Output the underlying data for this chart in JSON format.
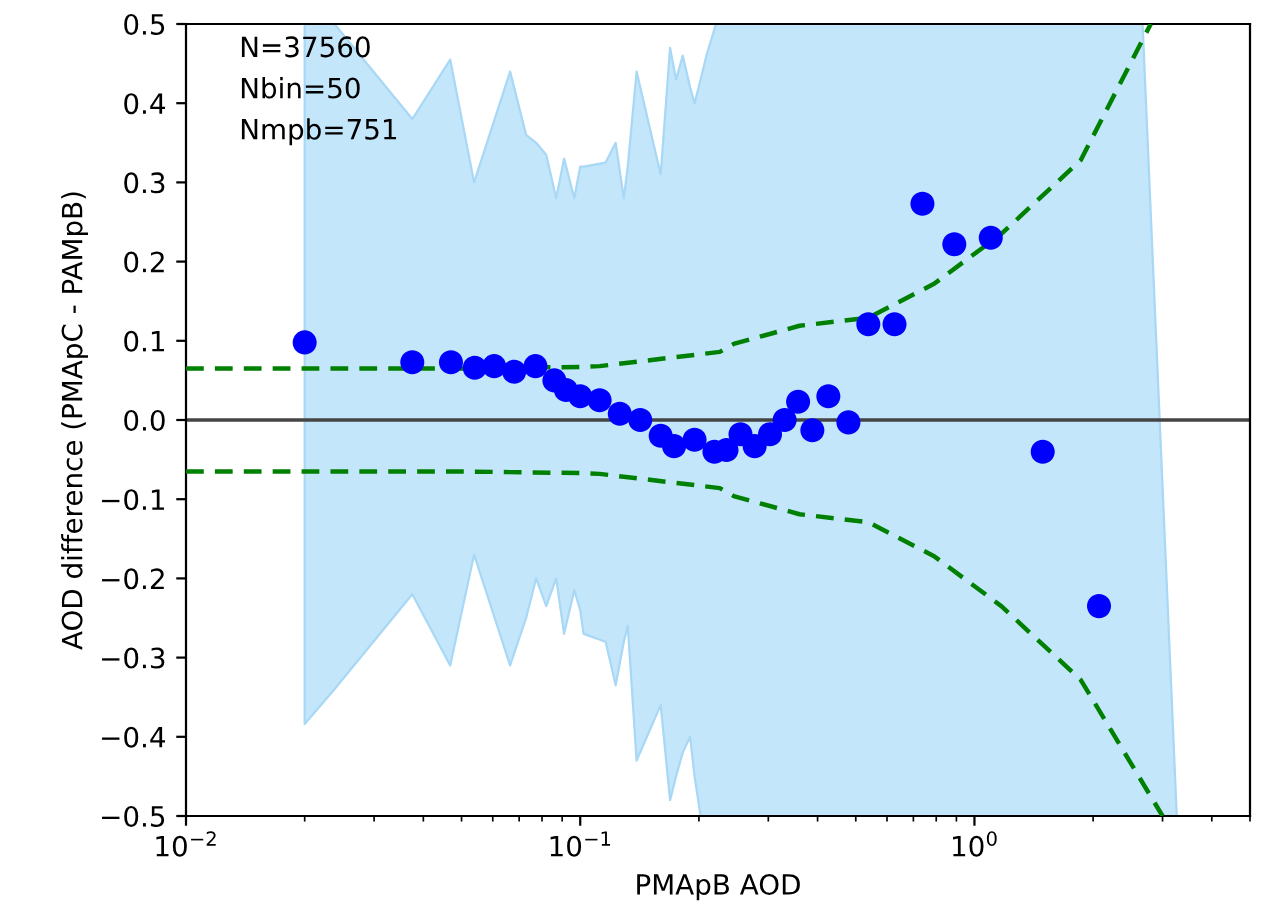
{
  "chart_data": {
    "type": "scatter",
    "xlabel": "PMApB AOD",
    "ylabel": "AOD difference (PMApC - PAMpB)",
    "annotations": [
      "N=37560",
      "Nbin=50",
      "Nmpb=751"
    ],
    "log": "x",
    "grid": false,
    "legend": false,
    "xlim": [
      0.01,
      5
    ],
    "xticks": [
      {
        "value": 0.01,
        "label": "10$^{−2}$"
      },
      {
        "value": 0.1,
        "label": "10$^{−1}$"
      },
      {
        "value": 1,
        "label": "10$^{0}$"
      }
    ],
    "ylim": [
      -0.5,
      0.5
    ],
    "yticks": [
      {
        "value": -0.5,
        "label": "−0.5"
      },
      {
        "value": -0.4,
        "label": "−0.4"
      },
      {
        "value": -0.3,
        "label": "−0.3"
      },
      {
        "value": -0.2,
        "label": "−0.2"
      },
      {
        "value": -0.1,
        "label": "−0.1"
      },
      {
        "value": 0,
        "label": "0.0"
      },
      0.1,
      0.2,
      0.3,
      0.4,
      0.5
    ],
    "ref_lines": [
      {
        "axis": "y",
        "value": 0,
        "color": "#444444",
        "line_style": "solid"
      }
    ],
    "series": [
      {
        "type": "line",
        "color": "#c3e6fa",
        "values": [
          null,
          null,
          null,
          null,
          null,
          null,
          null,
          null,
          null,
          null,
          null,
          null,
          null,
          null,
          null,
          null,
          null,
          null,
          null,
          null,
          null,
          null,
          null,
          null,
          null,
          null,
          null,
          null,
          null,
          null
        ],
        "x": [
          0.02,
          0.0238,
          0.0375,
          0.0468,
          0.0538,
          0.0664,
          0.0729,
          0.0773,
          0.082,
          0.0869,
          0.091,
          0.0966,
          0.1,
          0.102,
          0.116,
          0.123,
          0.129,
          0.132,
          0.139,
          0.16,
          0.169,
          0.175,
          0.182,
          0.19,
          0.195,
          0.202,
          0.209,
          0.221,
          2.67,
          3.26
        ],
        "upper": [
          0.5,
          0.5,
          0.38,
          0.455,
          0.3,
          0.44,
          0.36,
          0.35,
          0.335,
          0.28,
          0.33,
          0.28,
          0.32,
          0.32,
          0.325,
          0.35,
          0.28,
          0.32,
          0.44,
          0.31,
          0.47,
          0.43,
          0.46,
          0.42,
          0.4,
          0.43,
          0.46,
          0.5,
          0.5,
          -0.5
        ],
        "lower": [
          -0.384,
          -0.34,
          -0.22,
          -0.31,
          -0.17,
          -0.31,
          -0.25,
          -0.2,
          -0.235,
          -0.2,
          -0.27,
          -0.215,
          -0.24,
          -0.27,
          -0.28,
          -0.335,
          -0.28,
          -0.26,
          -0.43,
          -0.36,
          -0.48,
          -0.45,
          -0.42,
          -0.4,
          -0.45,
          -0.5,
          -0.5,
          -0.5,
          -0.5,
          -0.5
        ]
      },
      {
        "type": "line",
        "color": "#008000",
        "line_style": "dashed",
        "marker": "none",
        "x": [
          0.01,
          0.05,
          0.1,
          0.112,
          0.226,
          0.245,
          0.36,
          0.538,
          0.79,
          1.17,
          1.86,
          2.8
        ],
        "values": [
          0.065,
          0.065,
          0.067,
          0.068,
          0.086,
          0.096,
          0.119,
          0.129,
          0.172,
          0.235,
          0.328,
          0.5
        ]
      },
      {
        "type": "line",
        "color": "#008000",
        "line_style": "dashed",
        "marker": "none",
        "x": [
          0.01,
          0.05,
          0.1,
          0.112,
          0.226,
          0.245,
          0.36,
          0.538,
          0.79,
          1.17,
          1.86,
          3.0
        ],
        "values": [
          -0.065,
          -0.065,
          -0.067,
          -0.068,
          -0.086,
          -0.096,
          -0.119,
          -0.129,
          -0.172,
          -0.235,
          -0.328,
          -0.5
        ]
      },
      {
        "color": "#0000ff",
        "marker": "circle",
        "x": [
          0.02,
          0.0375,
          0.047,
          0.054,
          0.0605,
          0.068,
          0.077,
          0.086,
          0.092,
          0.1,
          0.112,
          0.126,
          0.142,
          0.16,
          0.173,
          0.195,
          0.219,
          0.235,
          0.255,
          0.277,
          0.303,
          0.33,
          0.357,
          0.388,
          0.426,
          0.479,
          0.538,
          0.627,
          0.738,
          0.889,
          1.1,
          1.49,
          2.07
        ],
        "values": [
          0.098,
          0.073,
          0.073,
          0.066,
          0.068,
          0.061,
          0.068,
          0.05,
          0.038,
          0.03,
          0.025,
          0.008,
          0.0,
          -0.02,
          -0.033,
          -0.025,
          -0.04,
          -0.038,
          -0.018,
          -0.033,
          -0.018,
          0.0,
          0.023,
          -0.013,
          0.03,
          -0.003,
          0.121,
          0.121,
          0.273,
          0.222,
          0.23,
          -0.04,
          -0.235
        ]
      }
    ]
  }
}
